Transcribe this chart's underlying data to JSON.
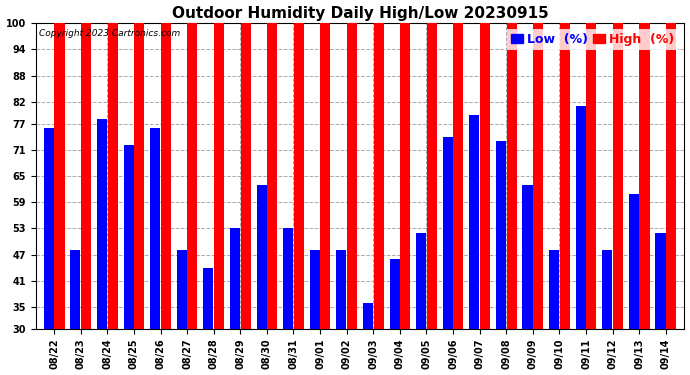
{
  "title": "Outdoor Humidity Daily High/Low 20230915",
  "copyright": "Copyright 2023 Cartronics.com",
  "legend_low": "Low  (%)",
  "legend_high": "High  (%)",
  "categories": [
    "08/22",
    "08/23",
    "08/24",
    "08/25",
    "08/26",
    "08/27",
    "08/28",
    "08/29",
    "08/30",
    "08/31",
    "09/01",
    "09/02",
    "09/03",
    "09/04",
    "09/05",
    "09/06",
    "09/07",
    "09/08",
    "09/09",
    "09/10",
    "09/11",
    "09/12",
    "09/13",
    "09/14"
  ],
  "high_values": [
    100,
    100,
    100,
    100,
    100,
    100,
    100,
    100,
    100,
    100,
    100,
    100,
    100,
    100,
    100,
    100,
    100,
    100,
    100,
    100,
    100,
    100,
    100,
    100
  ],
  "low_values": [
    76,
    48,
    78,
    72,
    76,
    48,
    44,
    53,
    63,
    53,
    48,
    48,
    36,
    46,
    52,
    74,
    79,
    73,
    63,
    48,
    81,
    48,
    61,
    52
  ],
  "ylim": [
    30,
    100
  ],
  "yticks": [
    30,
    35,
    41,
    47,
    53,
    59,
    65,
    71,
    77,
    82,
    88,
    94,
    100
  ],
  "high_color": "#ff0000",
  "low_color": "#0000ff",
  "bg_color": "#ffffff",
  "grid_color": "#aaaaaa",
  "title_fontsize": 11,
  "tick_fontsize": 7,
  "legend_fontsize": 9,
  "figwidth": 6.9,
  "figheight": 3.75,
  "dpi": 100
}
